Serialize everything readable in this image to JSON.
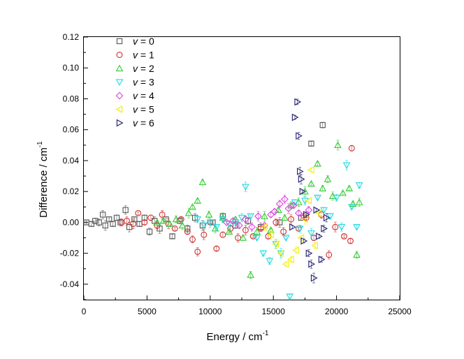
{
  "chart_data": {
    "type": "scatter",
    "title": "",
    "xlabel": "Energy / cm",
    "xlabel_sup": "-1",
    "ylabel": "Difference / cm",
    "ylabel_sup": "-1",
    "xlim": [
      0,
      25000
    ],
    "ylim": [
      -0.05,
      0.12
    ],
    "xticks": [
      0,
      5000,
      10000,
      15000,
      20000,
      25000
    ],
    "xtick_labels": [
      "0",
      "5000",
      "10000",
      "15000",
      "20000",
      "25000"
    ],
    "yticks": [
      -0.04,
      -0.02,
      0.0,
      0.02,
      0.04,
      0.06,
      0.08,
      0.1,
      0.12
    ],
    "ytick_labels": [
      "-0.04",
      "-0.02",
      "0.00",
      "0.02",
      "0.04",
      "0.06",
      "0.08",
      "0.10",
      "0.12"
    ],
    "grid": false,
    "legend_position": "top-left",
    "series": [
      {
        "name": "v = 0",
        "var": "v",
        "label": " = 0",
        "marker": "square",
        "color": "#555555",
        "points": [
          [
            200,
            0.0
          ],
          [
            600,
            -0.001
          ],
          [
            900,
            0.001
          ],
          [
            1200,
            0.0
          ],
          [
            1500,
            0.005
          ],
          [
            1700,
            -0.002
          ],
          [
            2000,
            0.002
          ],
          [
            2300,
            -0.001
          ],
          [
            2600,
            0.003
          ],
          [
            2900,
            0.0
          ],
          [
            3300,
            0.008
          ],
          [
            3600,
            -0.003
          ],
          [
            4000,
            0.002
          ],
          [
            4400,
            -0.001
          ],
          [
            4800,
            0.003
          ],
          [
            5200,
            -0.006
          ],
          [
            5600,
            0.001
          ],
          [
            6000,
            -0.004
          ],
          [
            6500,
            0.002
          ],
          [
            7000,
            -0.009
          ],
          [
            7600,
            0.001
          ],
          [
            8200,
            -0.004
          ],
          [
            8800,
            0.003
          ],
          [
            9400,
            -0.002
          ],
          [
            10200,
            0.0
          ],
          [
            11000,
            0.004
          ],
          [
            12000,
            -0.002
          ],
          [
            13000,
            0.001
          ],
          [
            14000,
            -0.003
          ],
          [
            15500,
            0.0
          ],
          [
            17200,
            0.003
          ],
          [
            18000,
            0.051
          ],
          [
            18900,
            0.063
          ]
        ]
      },
      {
        "name": "v = 1",
        "var": "v",
        "label": " = 1",
        "marker": "circle",
        "color": "#d03030",
        "points": [
          [
            3000,
            0.0
          ],
          [
            3400,
            0.001
          ],
          [
            3900,
            -0.001
          ],
          [
            4300,
            0.006
          ],
          [
            4800,
            0.0
          ],
          [
            5300,
            0.003
          ],
          [
            5800,
            -0.002
          ],
          [
            6200,
            0.005
          ],
          [
            6700,
            -0.001
          ],
          [
            7200,
            -0.004
          ],
          [
            7700,
            0.002
          ],
          [
            8200,
            -0.006
          ],
          [
            8600,
            -0.011
          ],
          [
            9000,
            -0.019
          ],
          [
            9500,
            -0.008
          ],
          [
            10000,
            0.0
          ],
          [
            10500,
            -0.017
          ],
          [
            11000,
            -0.008
          ],
          [
            11600,
            -0.004
          ],
          [
            12200,
            -0.01
          ],
          [
            12800,
            -0.005
          ],
          [
            13400,
            -0.009
          ],
          [
            14000,
            -0.004
          ],
          [
            14600,
            -0.009
          ],
          [
            15200,
            0.0
          ],
          [
            15800,
            -0.006
          ],
          [
            16400,
            0.002
          ],
          [
            17000,
            -0.004
          ],
          [
            17600,
            0.003
          ],
          [
            18200,
            -0.01
          ],
          [
            18800,
            0.005
          ],
          [
            19400,
            -0.021
          ],
          [
            19900,
            -0.003
          ],
          [
            20600,
            -0.009
          ],
          [
            21100,
            -0.012
          ],
          [
            21200,
            0.048
          ]
        ]
      },
      {
        "name": "v = 2",
        "var": "v",
        "label": " = 2",
        "marker": "triangle-up",
        "color": "#33cc33",
        "points": [
          [
            5800,
            0.0
          ],
          [
            6300,
            0.001
          ],
          [
            6800,
            -0.001
          ],
          [
            7300,
            0.002
          ],
          [
            7800,
            -0.002
          ],
          [
            8300,
            0.006
          ],
          [
            8600,
            0.01
          ],
          [
            9000,
            0.014
          ],
          [
            9400,
            0.026
          ],
          [
            9900,
            0.005
          ],
          [
            10400,
            -0.004
          ],
          [
            11000,
            0.003
          ],
          [
            11500,
            -0.006
          ],
          [
            12000,
            0.002
          ],
          [
            12600,
            -0.01
          ],
          [
            13200,
            -0.034
          ],
          [
            13700,
            -0.006
          ],
          [
            14300,
            0.004
          ],
          [
            14800,
            -0.005
          ],
          [
            15400,
            0.008
          ],
          [
            15900,
            0.003
          ],
          [
            16400,
            0.011
          ],
          [
            17000,
            0.013
          ],
          [
            17500,
            0.02
          ],
          [
            18000,
            0.025
          ],
          [
            18500,
            0.038
          ],
          [
            18900,
            0.022
          ],
          [
            19300,
            0.028
          ],
          [
            19700,
            0.017
          ],
          [
            20100,
            0.05
          ],
          [
            20500,
            0.019
          ],
          [
            21000,
            0.022
          ],
          [
            21300,
            0.012
          ],
          [
            21600,
            -0.021
          ],
          [
            21800,
            0.013
          ]
        ]
      },
      {
        "name": "v = 3",
        "var": "v",
        "label": " = 3",
        "marker": "triangle-down",
        "color": "#22d8e0",
        "points": [
          [
            9000,
            0.002
          ],
          [
            9500,
            -0.002
          ],
          [
            10000,
            0.0
          ],
          [
            10500,
            -0.003
          ],
          [
            11000,
            0.002
          ],
          [
            11500,
            -0.001
          ],
          [
            12000,
            0.0
          ],
          [
            12500,
            0.003
          ],
          [
            12800,
            0.023
          ],
          [
            13200,
            0.004
          ],
          [
            13700,
            -0.01
          ],
          [
            14200,
            -0.02
          ],
          [
            14700,
            -0.025
          ],
          [
            15200,
            -0.014
          ],
          [
            15600,
            -0.02
          ],
          [
            16000,
            -0.01
          ],
          [
            16300,
            -0.048
          ],
          [
            16700,
            0.013
          ],
          [
            17100,
            -0.004
          ],
          [
            17500,
            0.014
          ],
          [
            18000,
            -0.007
          ],
          [
            18500,
            0.016
          ],
          [
            19000,
            0.008
          ],
          [
            19500,
            0.004
          ],
          [
            20000,
            0.016
          ],
          [
            20400,
            -0.003
          ],
          [
            20800,
            0.037
          ],
          [
            21200,
            0.01
          ],
          [
            21600,
            -0.003
          ],
          [
            21800,
            0.024
          ]
        ]
      },
      {
        "name": "v = 4",
        "var": "v",
        "label": " = 4",
        "marker": "diamond",
        "color": "#e040e0",
        "points": [
          [
            11300,
            0.0
          ],
          [
            11800,
            0.001
          ],
          [
            12300,
            -0.002
          ],
          [
            12800,
            0.002
          ],
          [
            13300,
            -0.003
          ],
          [
            13800,
            0.004
          ],
          [
            14300,
            -0.002
          ],
          [
            14800,
            0.005
          ],
          [
            15100,
            0.007
          ],
          [
            15500,
            0.012
          ],
          [
            15900,
            0.015
          ],
          [
            16200,
            0.009
          ],
          [
            16600,
            0.011
          ],
          [
            17000,
            0.006
          ],
          [
            17400,
            0.004
          ],
          [
            17800,
            0.008
          ]
        ]
      },
      {
        "name": "v = 5",
        "var": "v",
        "label": " = 5",
        "marker": "triangle-left",
        "color": "#f0f000",
        "points": [
          [
            14300,
            -0.003
          ],
          [
            14800,
            -0.008
          ],
          [
            15200,
            -0.014
          ],
          [
            15600,
            -0.02
          ],
          [
            16000,
            -0.027
          ],
          [
            16400,
            -0.024
          ],
          [
            16800,
            -0.018
          ],
          [
            17200,
            -0.01
          ],
          [
            17500,
            0.002
          ],
          [
            17800,
            0.014
          ],
          [
            18000,
            0.034
          ],
          [
            18300,
            -0.015
          ],
          [
            18600,
            0.006
          ]
        ]
      },
      {
        "name": "v = 6",
        "var": "v",
        "label": " = 6",
        "marker": "triangle-right",
        "color": "#202070",
        "points": [
          [
            16500,
            -0.003
          ],
          [
            16700,
            0.068
          ],
          [
            16900,
            0.078
          ],
          [
            17000,
            0.056
          ],
          [
            17100,
            0.033
          ],
          [
            17200,
            0.028
          ],
          [
            17300,
            0.02
          ],
          [
            17400,
            -0.012
          ],
          [
            17600,
            0.005
          ],
          [
            17800,
            -0.02
          ],
          [
            18000,
            -0.027
          ],
          [
            18200,
            -0.036
          ],
          [
            18400,
            0.008
          ],
          [
            18600,
            -0.009
          ],
          [
            18800,
            -0.024
          ],
          [
            19000,
            -0.004
          ],
          [
            19200,
            0.003
          ]
        ]
      }
    ]
  }
}
